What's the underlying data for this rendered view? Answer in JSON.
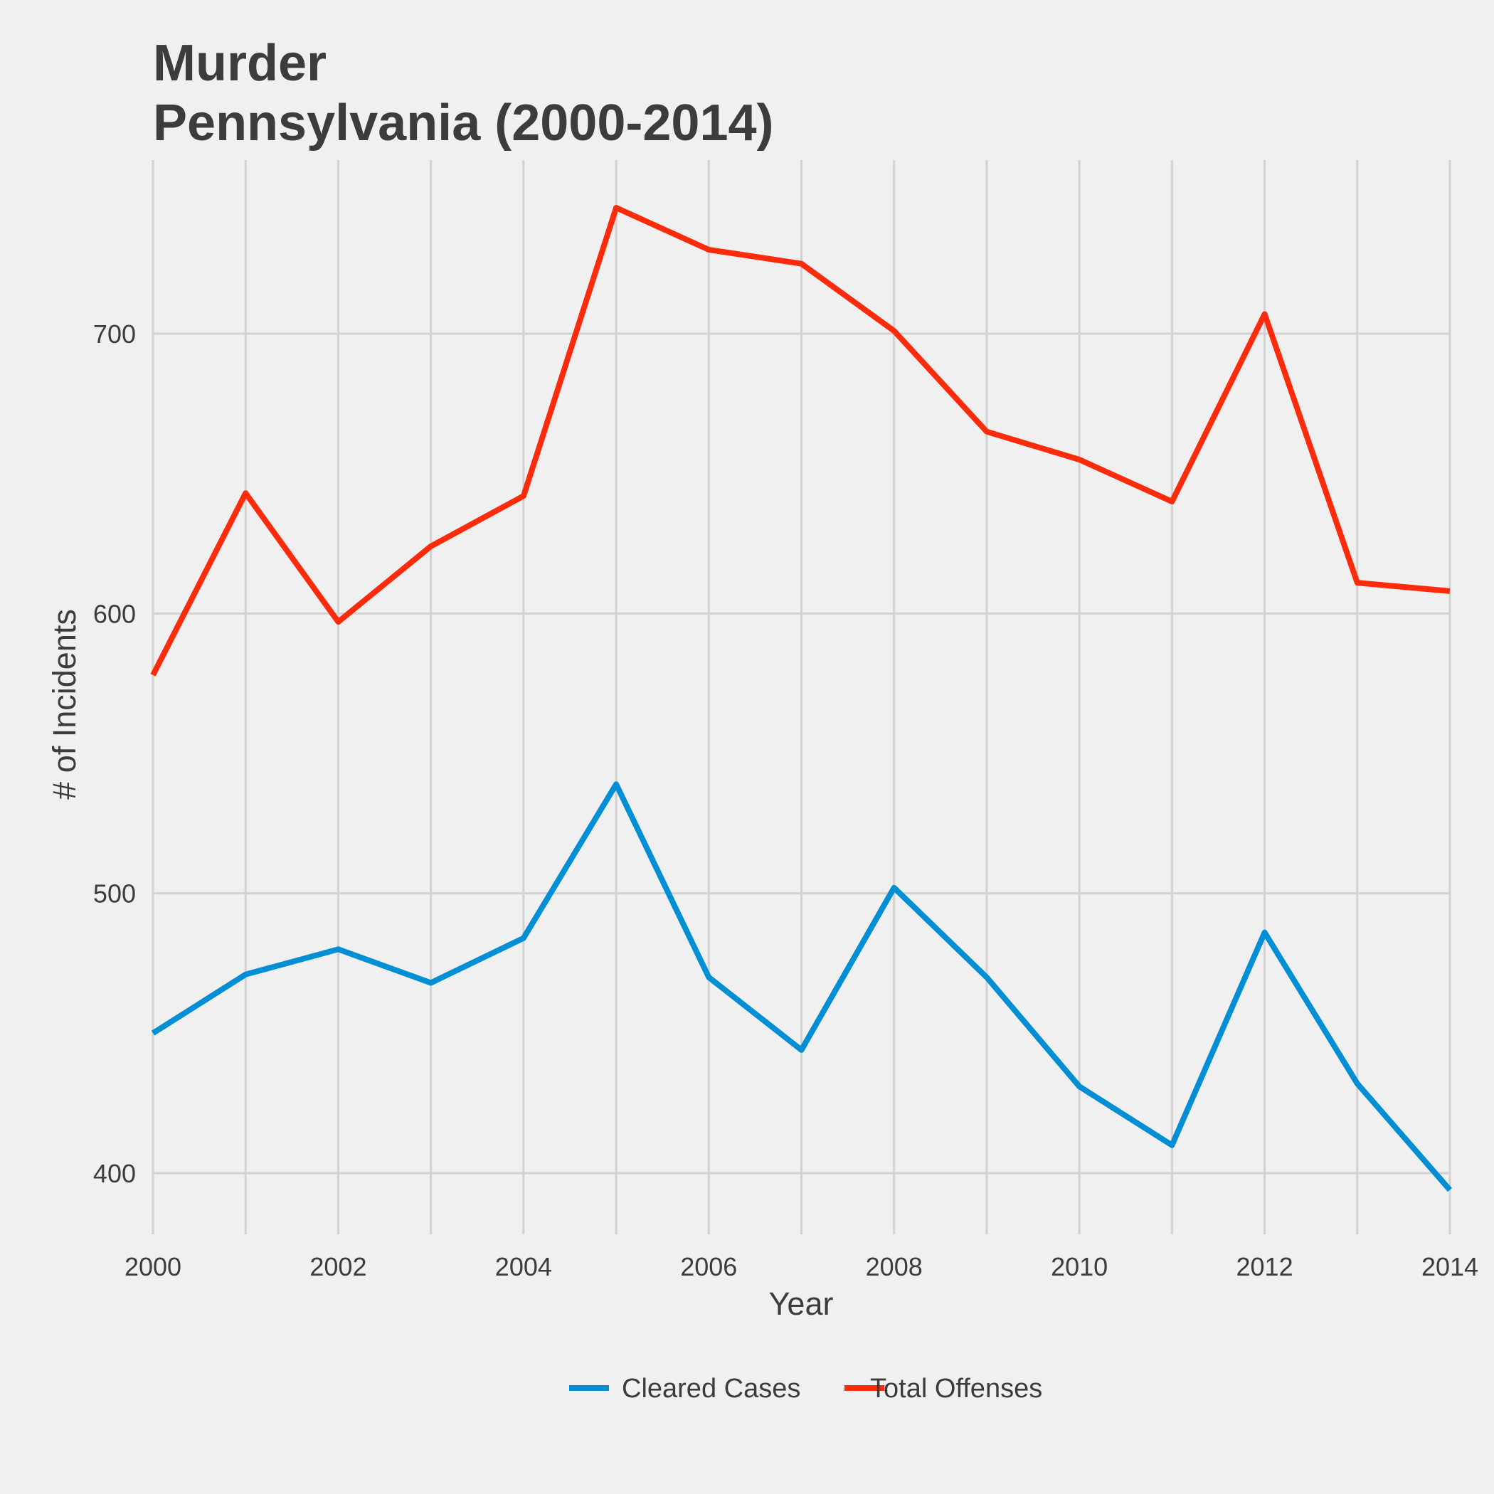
{
  "chart_data": {
    "type": "line",
    "title": "Murder",
    "subtitle": "Pennsylvania (2000-2014)",
    "xlabel": "Year",
    "ylabel": "# of Incidents",
    "x": [
      2000,
      2001,
      2002,
      2003,
      2004,
      2005,
      2006,
      2007,
      2008,
      2009,
      2010,
      2011,
      2012,
      2013,
      2014
    ],
    "xlim": [
      2000,
      2014
    ],
    "ylim": [
      383,
      762
    ],
    "x_ticks": [
      2000,
      2002,
      2004,
      2006,
      2008,
      2010,
      2012,
      2014
    ],
    "y_ticks": [
      400,
      500,
      600,
      700
    ],
    "grid": true,
    "legend_position": "bottom",
    "series": [
      {
        "name": "Cleared Cases",
        "color": "#008fd5",
        "values": [
          450,
          471,
          480,
          468,
          484,
          539,
          470,
          444,
          502,
          470,
          431,
          410,
          486,
          432,
          394
        ]
      },
      {
        "name": "Total Offenses",
        "color": "#fc2b0b",
        "values": [
          578,
          643,
          597,
          624,
          642,
          745,
          730,
          725,
          701,
          665,
          655,
          640,
          707,
          611,
          608
        ]
      }
    ]
  }
}
